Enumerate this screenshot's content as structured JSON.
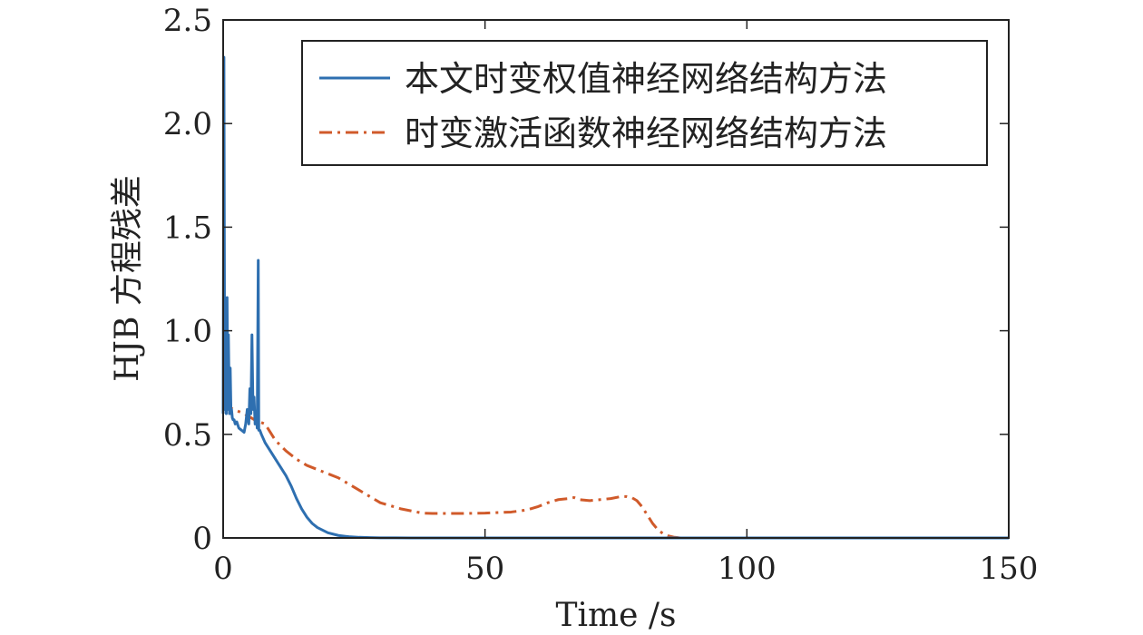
{
  "chart_data": {
    "type": "line",
    "xlabel": "Time /s",
    "ylabel": "HJB 方程残差",
    "xlim": [
      0,
      150
    ],
    "ylim": [
      0,
      2.5
    ],
    "x_ticks": [
      0,
      50,
      100,
      150
    ],
    "x_tick_labels": [
      "0",
      "50",
      "100",
      "150"
    ],
    "y_ticks": [
      0,
      0.5,
      1.0,
      1.5,
      2.0,
      2.5
    ],
    "y_tick_labels": [
      "0",
      "0.5",
      "1.0",
      "1.5",
      "2.0",
      "2.5"
    ],
    "grid": false,
    "legend_position": "top-right",
    "series": [
      {
        "name": "本文时变权值神经网络结构方法",
        "color": "#2e6fb0",
        "style": "solid",
        "x": [
          0,
          0.15,
          0.3,
          0.45,
          0.6,
          0.75,
          0.9,
          1.0,
          1.2,
          1.35,
          1.5,
          1.6,
          1.75,
          1.9,
          2.1,
          2.3,
          2.6,
          3.0,
          3.5,
          4.0,
          4.3,
          4.6,
          4.9,
          5.1,
          5.3,
          5.5,
          5.7,
          5.9,
          6.1,
          6.3,
          6.5,
          6.7,
          6.8,
          7.0,
          7.3,
          8,
          9,
          10,
          11,
          12,
          13,
          14,
          15,
          16,
          17,
          18,
          20,
          22,
          24,
          26,
          28,
          30,
          33,
          36,
          40,
          50,
          60,
          80,
          100,
          120,
          150
        ],
        "y": [
          0.6,
          2.32,
          0.62,
          1.1,
          0.6,
          1.16,
          0.62,
          0.98,
          0.6,
          0.82,
          0.6,
          0.62,
          0.58,
          0.57,
          0.57,
          0.55,
          0.56,
          0.53,
          0.52,
          0.51,
          0.55,
          0.62,
          0.55,
          0.72,
          0.6,
          0.98,
          0.62,
          0.68,
          0.55,
          0.6,
          0.53,
          1.34,
          0.52,
          0.52,
          0.5,
          0.46,
          0.42,
          0.38,
          0.34,
          0.3,
          0.25,
          0.19,
          0.14,
          0.1,
          0.07,
          0.05,
          0.025,
          0.012,
          0.006,
          0.003,
          0.0015,
          0.0008,
          0.0004,
          0.0002,
          0.0001,
          0,
          0,
          0,
          0,
          0,
          0
        ]
      },
      {
        "name": "时变激活函数神经网络结构方法",
        "color": "#d05a2a",
        "style": "dash-dot",
        "x": [
          0,
          0.5,
          2,
          4,
          6,
          8,
          10,
          12,
          14,
          16,
          18,
          20,
          22,
          24,
          26,
          28,
          30,
          32,
          34,
          36,
          38,
          40,
          45,
          50,
          55,
          58,
          60,
          62,
          64,
          66,
          67,
          68,
          70,
          72,
          74,
          76,
          77,
          78,
          79,
          80,
          81,
          82,
          83,
          84,
          85,
          86,
          87,
          88,
          90,
          95,
          100,
          110,
          120,
          130,
          140,
          150
        ],
        "y": [
          0.62,
          0.64,
          0.62,
          0.6,
          0.57,
          0.55,
          0.47,
          0.42,
          0.38,
          0.35,
          0.33,
          0.31,
          0.29,
          0.26,
          0.23,
          0.2,
          0.17,
          0.155,
          0.14,
          0.13,
          0.12,
          0.118,
          0.118,
          0.12,
          0.125,
          0.135,
          0.15,
          0.17,
          0.185,
          0.19,
          0.195,
          0.185,
          0.18,
          0.185,
          0.19,
          0.2,
          0.2,
          0.195,
          0.18,
          0.15,
          0.11,
          0.07,
          0.04,
          0.02,
          0.01,
          0.004,
          0.001,
          0,
          0,
          0,
          0,
          0,
          0,
          0,
          0,
          0
        ]
      }
    ]
  }
}
